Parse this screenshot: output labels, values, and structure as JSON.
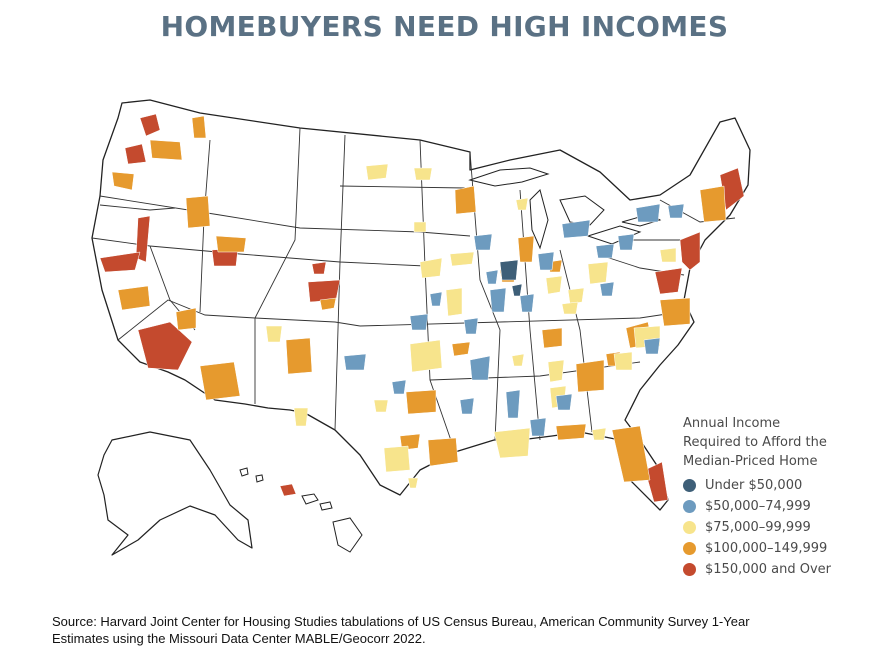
{
  "title": "HOMEBUYERS NEED HIGH INCOMES",
  "legend": {
    "title_lines": [
      "Annual Income",
      "Required to Afford the",
      "Median-Priced Home"
    ],
    "items": [
      {
        "label": "Under $50,000",
        "color": "#3e5f78"
      },
      {
        "label": "$50,000–74,999",
        "color": "#6d9bbf"
      },
      {
        "label": "$75,000–99,999",
        "color": "#f7e48c"
      },
      {
        "label": "$100,000–149,999",
        "color": "#e69a2e"
      },
      {
        "label": "$150,000 and Over",
        "color": "#c44a2e"
      }
    ]
  },
  "source_lines": [
    "Source: Harvard Joint Center for Housing Studies tabulations of US Census Bureau, American Community Survey 1-Year",
    "Estimates using the Missouri Data Center MABLE/Geocorr 2022."
  ]
}
